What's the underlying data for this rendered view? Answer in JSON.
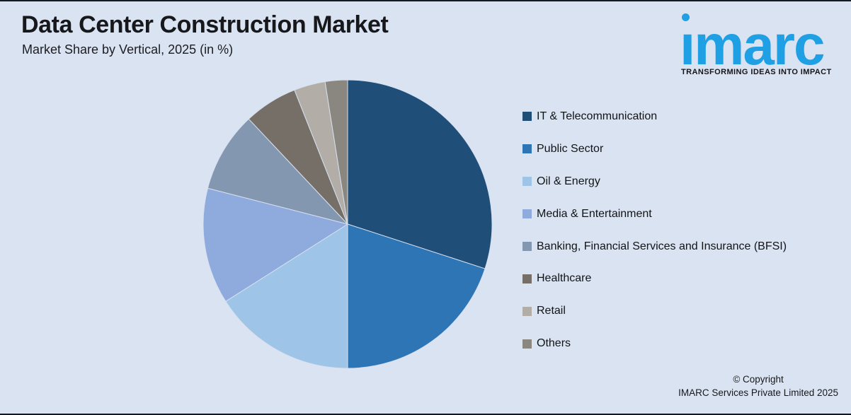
{
  "header": {
    "title": "Data Center Construction Market",
    "subtitle": "Market Share by Vertical, 2025 (in %)"
  },
  "logo": {
    "wordmark": "imarc",
    "tagline": "TRANSFORMING IDEAS INTO IMPACT"
  },
  "chart_data": {
    "type": "pie",
    "title": "Data Center Construction Market",
    "subtitle": "Market Share by Vertical, 2025 (in %)",
    "unit": "%",
    "start_angle_deg": 0,
    "direction": "clockwise",
    "legend_position": "right",
    "labels": [
      "IT & Telecommunication",
      "Public Sector",
      "Oil & Energy",
      "Media & Entertainment",
      "Banking, Financial Services and Insurance (BFSI)",
      "Healthcare",
      "Retail",
      "Others"
    ],
    "values": [
      30,
      20,
      16,
      13,
      9,
      6,
      3.5,
      2.5
    ],
    "colors": [
      "#1F4E79",
      "#2E75B6",
      "#9EC4E7",
      "#8FAADC",
      "#8497B0",
      "#756F68",
      "#B2ADA6",
      "#8A8680"
    ]
  },
  "footer": {
    "copyright_line1": "© Copyright",
    "copyright_line2": "IMARC Services Private Limited 2025"
  },
  "colors": {
    "background": "#DAE3F1",
    "frame_border": "#14181F",
    "text_primary": "#17181C",
    "brand_blue": "#1FA0E4",
    "tagline_color": "#15151B",
    "slice_separator": "#D7E0EF"
  }
}
